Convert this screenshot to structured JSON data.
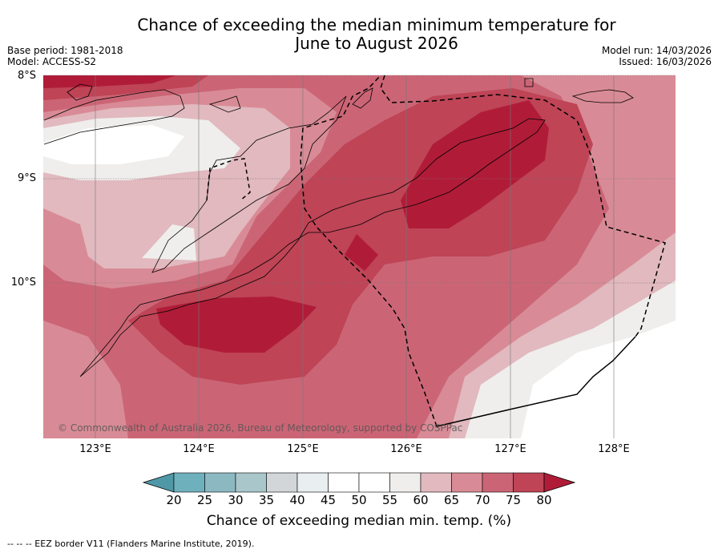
{
  "title_line1": "Chance of exceeding the median minimum temperature for",
  "title_line2": "June to August 2026",
  "base_period": "Base period: 1981-2018",
  "model": "Model: ACCESS-S2",
  "model_run": "Model run: 14/03/2026",
  "issued": "Issued: 16/03/2026",
  "lat_labels": [
    "8°S",
    "9°S",
    "10°S"
  ],
  "lon_labels": [
    "123°E",
    "124°E",
    "125°E",
    "126°E",
    "127°E",
    "128°E"
  ],
  "copyright": "© Commonwealth of Australia 2026, Bureau of Meteorology, supported by COSPPac",
  "colorbar": {
    "ticks": [
      "20",
      "25",
      "30",
      "35",
      "40",
      "45",
      "50",
      "55",
      "60",
      "65",
      "70",
      "75",
      "80"
    ],
    "colors": [
      "#4f98a7",
      "#6fb0bd",
      "#8cb8c2",
      "#a9c6cb",
      "#d2d6d9",
      "#e9eef0",
      "#ffffff",
      "#ffffff",
      "#efeeec",
      "#e1b9bf",
      "#d88b96",
      "#cb6575",
      "#be4456",
      "#b01c38"
    ],
    "label": "Chance of exceeding median min. temp. (%)"
  },
  "footnote": "--  --  -- EEZ border V11 (Flanders Marine Institute, 2019)."
}
